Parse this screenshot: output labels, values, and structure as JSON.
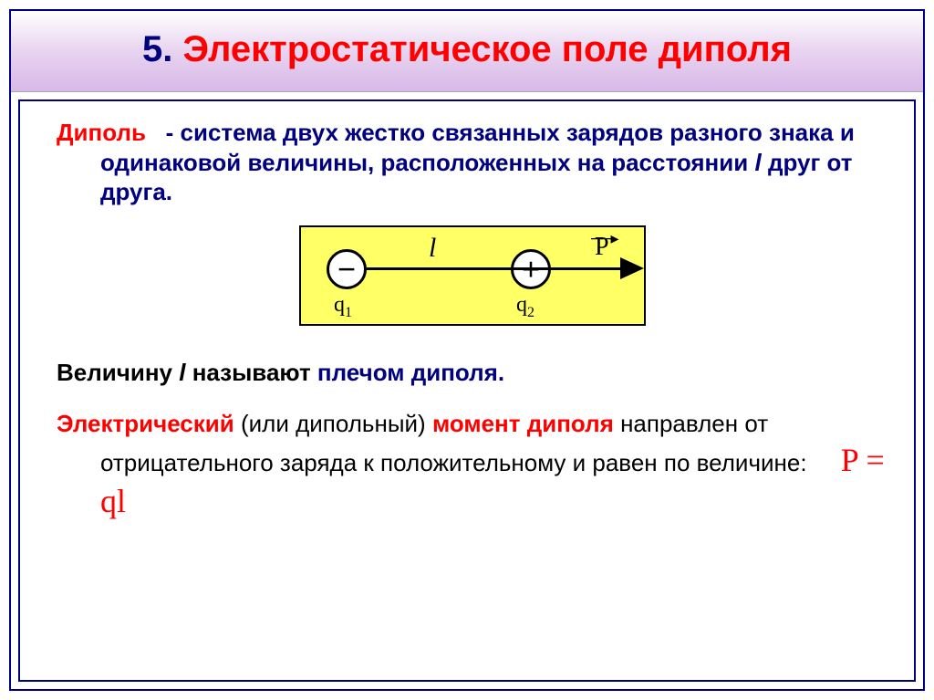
{
  "slide": {
    "number": "5.",
    "title": "Электростатическое поле диполя"
  },
  "definition": {
    "term": "Диполь",
    "text": "- система двух жестко связанных зарядов разного знака и одинаковой величины, расположенных на расстоянии",
    "var": "l",
    "text_end": "друг от друга."
  },
  "diagram": {
    "type": "physics-dipole",
    "background_color": "#ffff66",
    "border_color": "#000000",
    "charges": [
      {
        "sign": "−",
        "label": "q",
        "sub": "1",
        "fill": "#ffffff"
      },
      {
        "sign": "+",
        "label": "q",
        "sub": "2",
        "fill": "#ffffff"
      }
    ],
    "length_label": "l",
    "vector_label": "P",
    "arrow_color": "#000000"
  },
  "line2": {
    "pre": "Величину",
    "var": "l",
    "mid": "называют",
    "term": "плечом диполя."
  },
  "line3": {
    "term1": "Электрический",
    "plain1": "(или дипольный)",
    "term2": "момент  диполя",
    "cont": "направлен от отрицательного заряда к положительному и равен по величине:"
  },
  "formula": "P = ql",
  "colors": {
    "title_red": "#ff0000",
    "navy": "#000080",
    "formula_red": "#ff0000",
    "bg_gradient_end": "#d8b8e8"
  },
  "fonts": {
    "title_pt": 40,
    "body_pt": 26,
    "formula_pt": 36,
    "diagram_label_pt": 24
  }
}
